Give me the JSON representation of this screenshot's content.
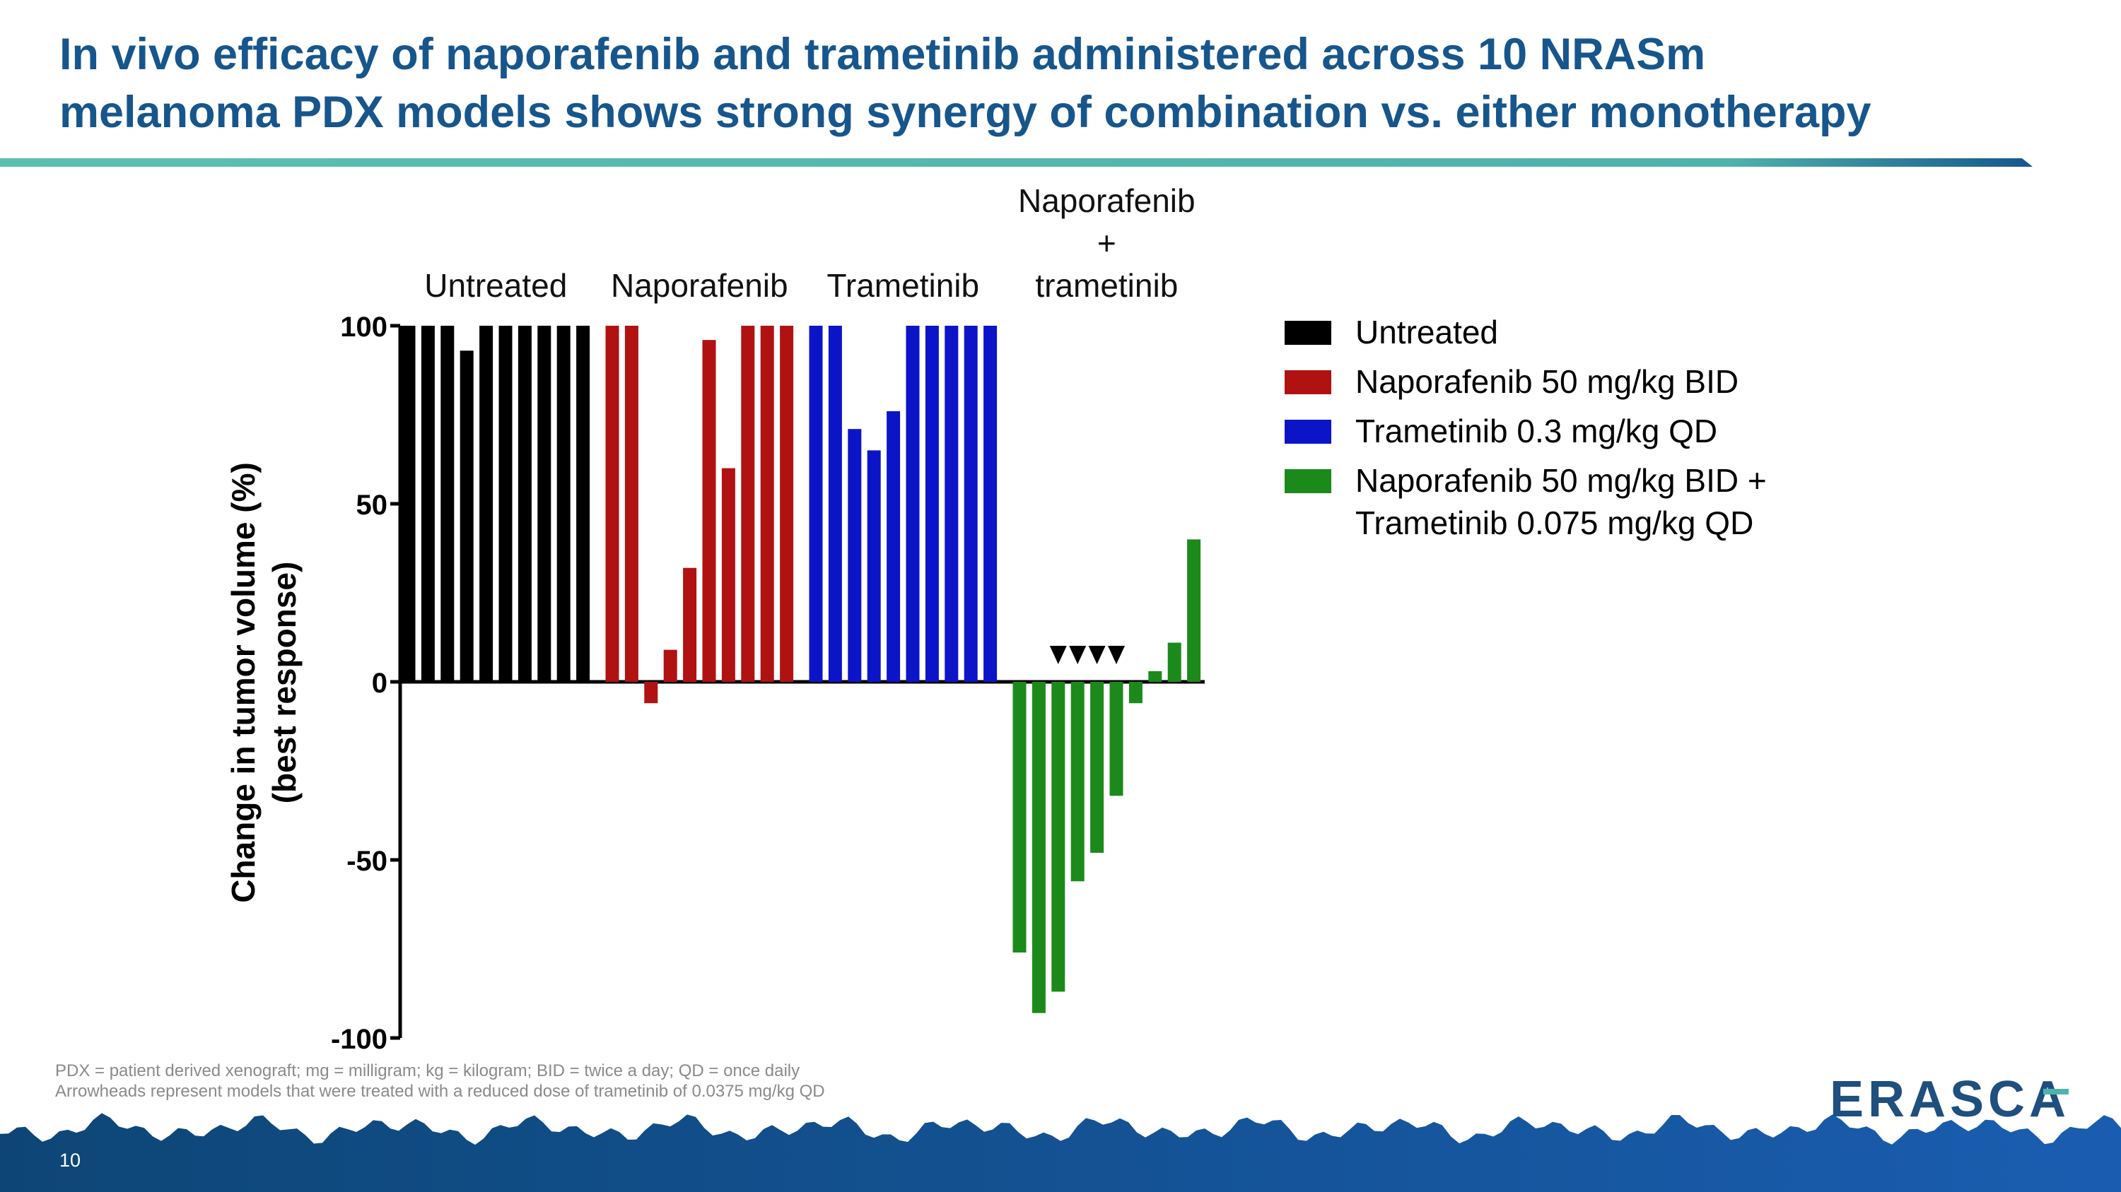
{
  "header": {
    "title": [
      "In vivo efficacy of naporafenib and trametinib administered across 10 NRASm",
      "melanoma PDX models shows strong synergy of combination vs. either monotherapy"
    ]
  },
  "chart_data": {
    "type": "bar",
    "y_label": [
      "Change in tumor volume (%)",
      "(best response)"
    ],
    "ylim": [
      -100,
      100
    ],
    "yticks": [
      -100,
      -50,
      0,
      50,
      100
    ],
    "series": [
      {
        "name": "Untreated",
        "group_label": [
          "Untreated"
        ],
        "color": "#000000",
        "values": [
          100,
          100,
          100,
          93,
          100,
          100,
          100,
          100,
          100,
          100
        ]
      },
      {
        "name": "Naporafenib 50 mg/kg BID",
        "group_label": [
          "Naporafenib"
        ],
        "color": "#b01212",
        "values": [
          100,
          100,
          -6,
          9,
          32,
          96,
          60,
          100,
          100,
          100
        ]
      },
      {
        "name": "Trametinib 0.3 mg/kg QD",
        "group_label": [
          "Trametinib"
        ],
        "color": "#0c14c8",
        "values": [
          100,
          100,
          71,
          65,
          76,
          100,
          100,
          100,
          100,
          100
        ]
      },
      {
        "name": "Naporafenib 50 mg/kg BID + Trametinib 0.075 mg/kg QD",
        "group_label": [
          "Naporafenib",
          "+",
          "trametinib"
        ],
        "color": "#1b8a1b",
        "values": [
          -76,
          -93,
          -87,
          -56,
          -48,
          -32,
          -6,
          3,
          11,
          40
        ]
      }
    ]
  },
  "footnotes": [
    "PDX = patient derived xenograft; mg = milligram; kg = kilogram; BID = twice a day; QD = once daily",
    "Arrowheads represent models that were treated with a reduced dose of trametinib of 0.0375 mg/kg QD"
  ],
  "footer": {
    "page_number": "10",
    "logo": "ERASCA"
  }
}
